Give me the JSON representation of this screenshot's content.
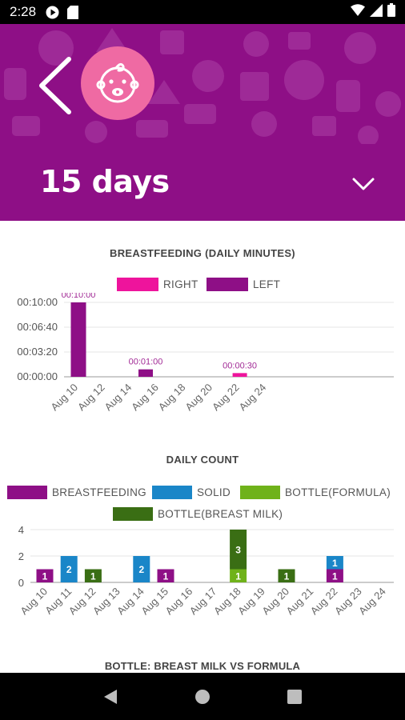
{
  "status_bar": {
    "time": "2:28",
    "icons": [
      "play-protect-icon",
      "sd-card-icon",
      "wifi-icon",
      "signal-icon",
      "battery-icon"
    ]
  },
  "header": {
    "period": "15 days",
    "back_icon": "back-chevron-icon",
    "avatar_icon": "baby-face-icon",
    "dropdown_icon": "chevron-down-icon"
  },
  "colors": {
    "header": "#8e0f86",
    "avatar": "#ef6aa3",
    "right": "#ee149c",
    "left": "#8e0f86",
    "solid": "#1a86c8",
    "bottle_formula": "#6fb21a",
    "bottle_breast_milk": "#3a6e14"
  },
  "chart_data": [
    {
      "type": "bar",
      "title": "BREASTFEEDING (DAILY MINUTES)",
      "legend": [
        "RIGHT",
        "LEFT"
      ],
      "legend_placement": "top",
      "x_tick_labels": [
        "Aug 10",
        "Aug 12",
        "Aug 14",
        "Aug 16",
        "Aug 18",
        "Aug 20",
        "Aug 22",
        "Aug 24"
      ],
      "y_tick_labels": [
        "00:00:00",
        "00:03:20",
        "00:06:40",
        "00:10:00"
      ],
      "ylim_seconds": [
        0,
        600
      ],
      "series": [
        {
          "name": "LEFT",
          "points": [
            {
              "date": "Aug 10",
              "seconds": 600,
              "label": "00:10:00"
            },
            {
              "date": "Aug 15",
              "seconds": 60,
              "label": "00:01:00"
            }
          ]
        },
        {
          "name": "RIGHT",
          "points": [
            {
              "date": "Aug 22",
              "seconds": 30,
              "label": "00:00:30"
            }
          ]
        }
      ]
    },
    {
      "type": "bar",
      "stacked": true,
      "title": "DAILY COUNT",
      "legend": [
        "BREASTFEEDING",
        "SOLID",
        "BOTTLE(FORMULA)",
        "BOTTLE(BREAST MILK)"
      ],
      "legend_placement": "top",
      "categories": [
        "Aug 10",
        "Aug 11",
        "Aug 12",
        "Aug 13",
        "Aug 14",
        "Aug 15",
        "Aug 16",
        "Aug 17",
        "Aug 18",
        "Aug 19",
        "Aug 20",
        "Aug 21",
        "Aug 22",
        "Aug 23",
        "Aug 24"
      ],
      "y_tick_labels": [
        "0",
        "2",
        "4"
      ],
      "ylim": [
        0,
        4
      ],
      "series": [
        {
          "name": "BREASTFEEDING",
          "values": [
            1,
            0,
            0,
            0,
            0,
            1,
            0,
            0,
            0,
            0,
            0,
            0,
            1,
            0,
            0
          ]
        },
        {
          "name": "SOLID",
          "values": [
            0,
            2,
            0,
            0,
            2,
            0,
            0,
            0,
            0,
            0,
            0,
            0,
            1,
            0,
            0
          ]
        },
        {
          "name": "BOTTLE(FORMULA)",
          "values": [
            0,
            0,
            0,
            0,
            0,
            0,
            0,
            0,
            1,
            0,
            0,
            0,
            0,
            0,
            0
          ]
        },
        {
          "name": "BOTTLE(BREAST MILK)",
          "values": [
            0,
            0,
            1,
            0,
            0,
            0,
            0,
            0,
            3,
            0,
            1,
            0,
            0,
            0,
            0
          ]
        }
      ]
    }
  ],
  "next_chart": {
    "title": "BOTTLE: BREAST MILK VS FORMULA"
  },
  "nav_bar": {
    "back": "nav-back-icon",
    "home": "nav-home-icon",
    "recents": "nav-recents-icon"
  }
}
